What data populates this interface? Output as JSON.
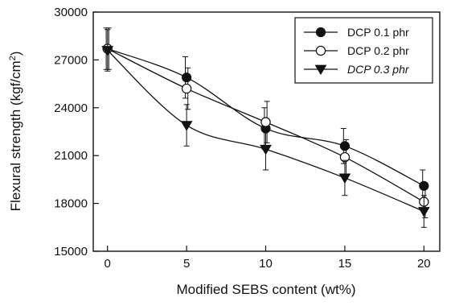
{
  "chart_data": {
    "type": "line",
    "title": "",
    "xlabel": "Modified SEBS content (wt%)",
    "ylabel": "Flexural strength (kgf/cm²)",
    "ylabel_base": "Flexural strength (kgf/cm",
    "ylabel_sup": "2",
    "ylabel_close": ")",
    "x": [
      0,
      5,
      10,
      15,
      20
    ],
    "x_ticks": [
      "0",
      "5",
      "10",
      "15",
      "20"
    ],
    "y_ticks": [
      "15000",
      "18000",
      "21000",
      "24000",
      "27000",
      "30000"
    ],
    "xlim": [
      -0.9,
      21.0
    ],
    "ylim": [
      15000,
      30000
    ],
    "grid": false,
    "legend_position": "top-right",
    "series": [
      {
        "name": "DCP 0.1 phr",
        "marker": "filled-circle",
        "italic": false,
        "values": [
          27700,
          25900,
          22700,
          21600,
          19100
        ],
        "errors": [
          1300,
          1300,
          1300,
          1100,
          1000
        ]
      },
      {
        "name": "DCP 0.2 phr",
        "marker": "open-circle",
        "italic": false,
        "values": [
          27700,
          25200,
          23100,
          20900,
          18100
        ],
        "errors": [
          1300,
          1300,
          1300,
          1100,
          1000
        ]
      },
      {
        "name": "DCP 0.3 phr",
        "marker": "filled-triangle-down",
        "italic": true,
        "values": [
          27600,
          22900,
          21400,
          19600,
          17500
        ],
        "errors": [
          1300,
          1300,
          1300,
          1100,
          1000
        ]
      }
    ]
  }
}
